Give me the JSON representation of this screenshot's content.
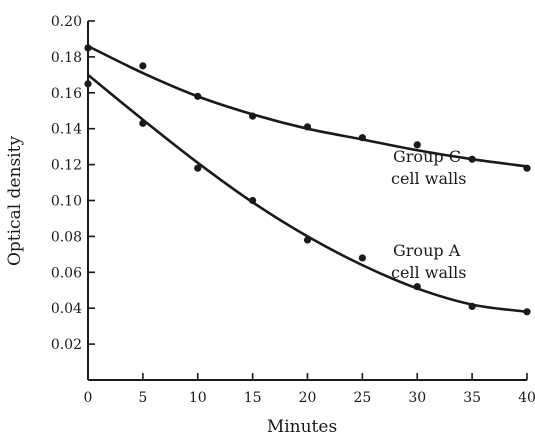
{
  "chart_data": {
    "type": "scatter",
    "xlabel": "Minutes",
    "ylabel": "Optical density",
    "xlim": [
      0,
      40
    ],
    "ylim": [
      0,
      0.2
    ],
    "x_ticks": [
      {
        "value": 0,
        "label": "0"
      },
      {
        "value": 5,
        "label": "5"
      },
      {
        "value": 10,
        "label": "10"
      },
      {
        "value": 15,
        "label": "15"
      },
      {
        "value": 20,
        "label": "20"
      },
      {
        "value": 25,
        "label": "25"
      },
      {
        "value": 30,
        "label": "30"
      },
      {
        "value": 35,
        "label": "35"
      },
      {
        "value": 40,
        "label": "40"
      }
    ],
    "y_ticks": [
      {
        "value": 0.02,
        "label": "0.02"
      },
      {
        "value": 0.04,
        "label": "0.04"
      },
      {
        "value": 0.06,
        "label": "0.06"
      },
      {
        "value": 0.08,
        "label": "0.08"
      },
      {
        "value": 0.1,
        "label": "0.10"
      },
      {
        "value": 0.12,
        "label": "0.12"
      },
      {
        "value": 0.14,
        "label": "0.14"
      },
      {
        "value": 0.16,
        "label": "0.16"
      },
      {
        "value": 0.18,
        "label": "0.18"
      },
      {
        "value": 0.2,
        "label": "0.20"
      }
    ],
    "grid": false,
    "series": [
      {
        "name": "Group C cell walls",
        "label_lines": [
          "Group C",
          "cell walls"
        ],
        "points": [
          {
            "x": 0,
            "y": 0.185
          },
          {
            "x": 5,
            "y": 0.175
          },
          {
            "x": 10,
            "y": 0.158
          },
          {
            "x": 15,
            "y": 0.147
          },
          {
            "x": 20,
            "y": 0.141
          },
          {
            "x": 25,
            "y": 0.135
          },
          {
            "x": 30,
            "y": 0.131
          },
          {
            "x": 35,
            "y": 0.123
          },
          {
            "x": 40,
            "y": 0.118
          }
        ],
        "fit": [
          {
            "x": 0,
            "y": 0.186
          },
          {
            "x": 5,
            "y": 0.171
          },
          {
            "x": 10,
            "y": 0.158
          },
          {
            "x": 15,
            "y": 0.148
          },
          {
            "x": 20,
            "y": 0.14
          },
          {
            "x": 25,
            "y": 0.134
          },
          {
            "x": 30,
            "y": 0.128
          },
          {
            "x": 35,
            "y": 0.123
          },
          {
            "x": 40,
            "y": 0.119
          }
        ]
      },
      {
        "name": "Group A cell walls",
        "label_lines": [
          "Group A",
          "cell walls"
        ],
        "points": [
          {
            "x": 0,
            "y": 0.165
          },
          {
            "x": 5,
            "y": 0.143
          },
          {
            "x": 10,
            "y": 0.118
          },
          {
            "x": 15,
            "y": 0.1
          },
          {
            "x": 20,
            "y": 0.078
          },
          {
            "x": 25,
            "y": 0.068
          },
          {
            "x": 30,
            "y": 0.052
          },
          {
            "x": 35,
            "y": 0.041
          },
          {
            "x": 40,
            "y": 0.038
          }
        ],
        "fit": [
          {
            "x": 0,
            "y": 0.17
          },
          {
            "x": 5,
            "y": 0.145
          },
          {
            "x": 10,
            "y": 0.121
          },
          {
            "x": 15,
            "y": 0.099
          },
          {
            "x": 20,
            "y": 0.08
          },
          {
            "x": 25,
            "y": 0.064
          },
          {
            "x": 30,
            "y": 0.051
          },
          {
            "x": 35,
            "y": 0.042
          },
          {
            "x": 40,
            "y": 0.038
          }
        ]
      }
    ]
  }
}
